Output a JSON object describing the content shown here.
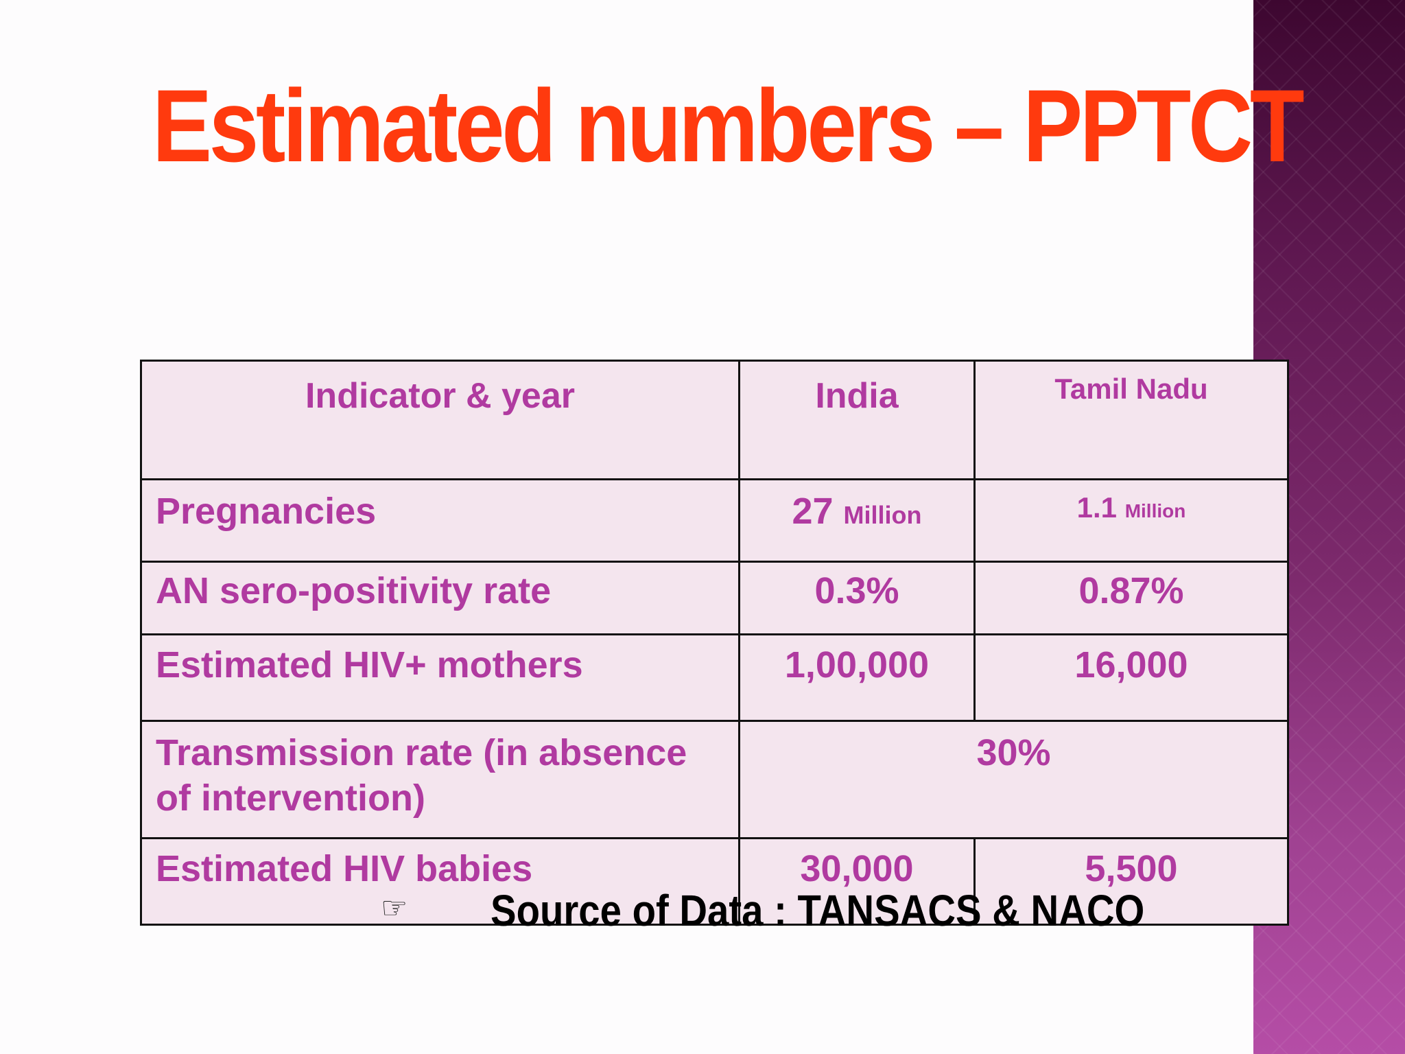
{
  "slide": {
    "title": "Estimated numbers – PPTCT",
    "accent_colors": {
      "title": "#ff3a0e",
      "table_text": "#b03aa0",
      "side_band": "#6b1e5e"
    }
  },
  "table": {
    "header": {
      "indicator": "Indicator & year",
      "india": "India",
      "tamil_nadu": "Tamil Nadu"
    },
    "rows": [
      {
        "indicator": "Pregnancies",
        "india_value": "27",
        "india_unit": "Million",
        "tn_value": "1.1",
        "tn_unit": "Million"
      },
      {
        "indicator": "AN sero-positivity rate",
        "india": "0.3%",
        "tamil_nadu": "0.87%"
      },
      {
        "indicator": "Estimated HIV+ mothers",
        "india": "1,00,000",
        "tamil_nadu": "16,000"
      },
      {
        "indicator_line1": "Transmission rate (in absence",
        "indicator_line2": "of intervention)",
        "combined": "30%"
      },
      {
        "indicator": "Estimated HIV babies",
        "india": "30,000",
        "tamil_nadu": "5,500"
      }
    ]
  },
  "source": {
    "icon": "pointing-hand-icon",
    "text": "Source of Data : TANSACS & NACO"
  }
}
